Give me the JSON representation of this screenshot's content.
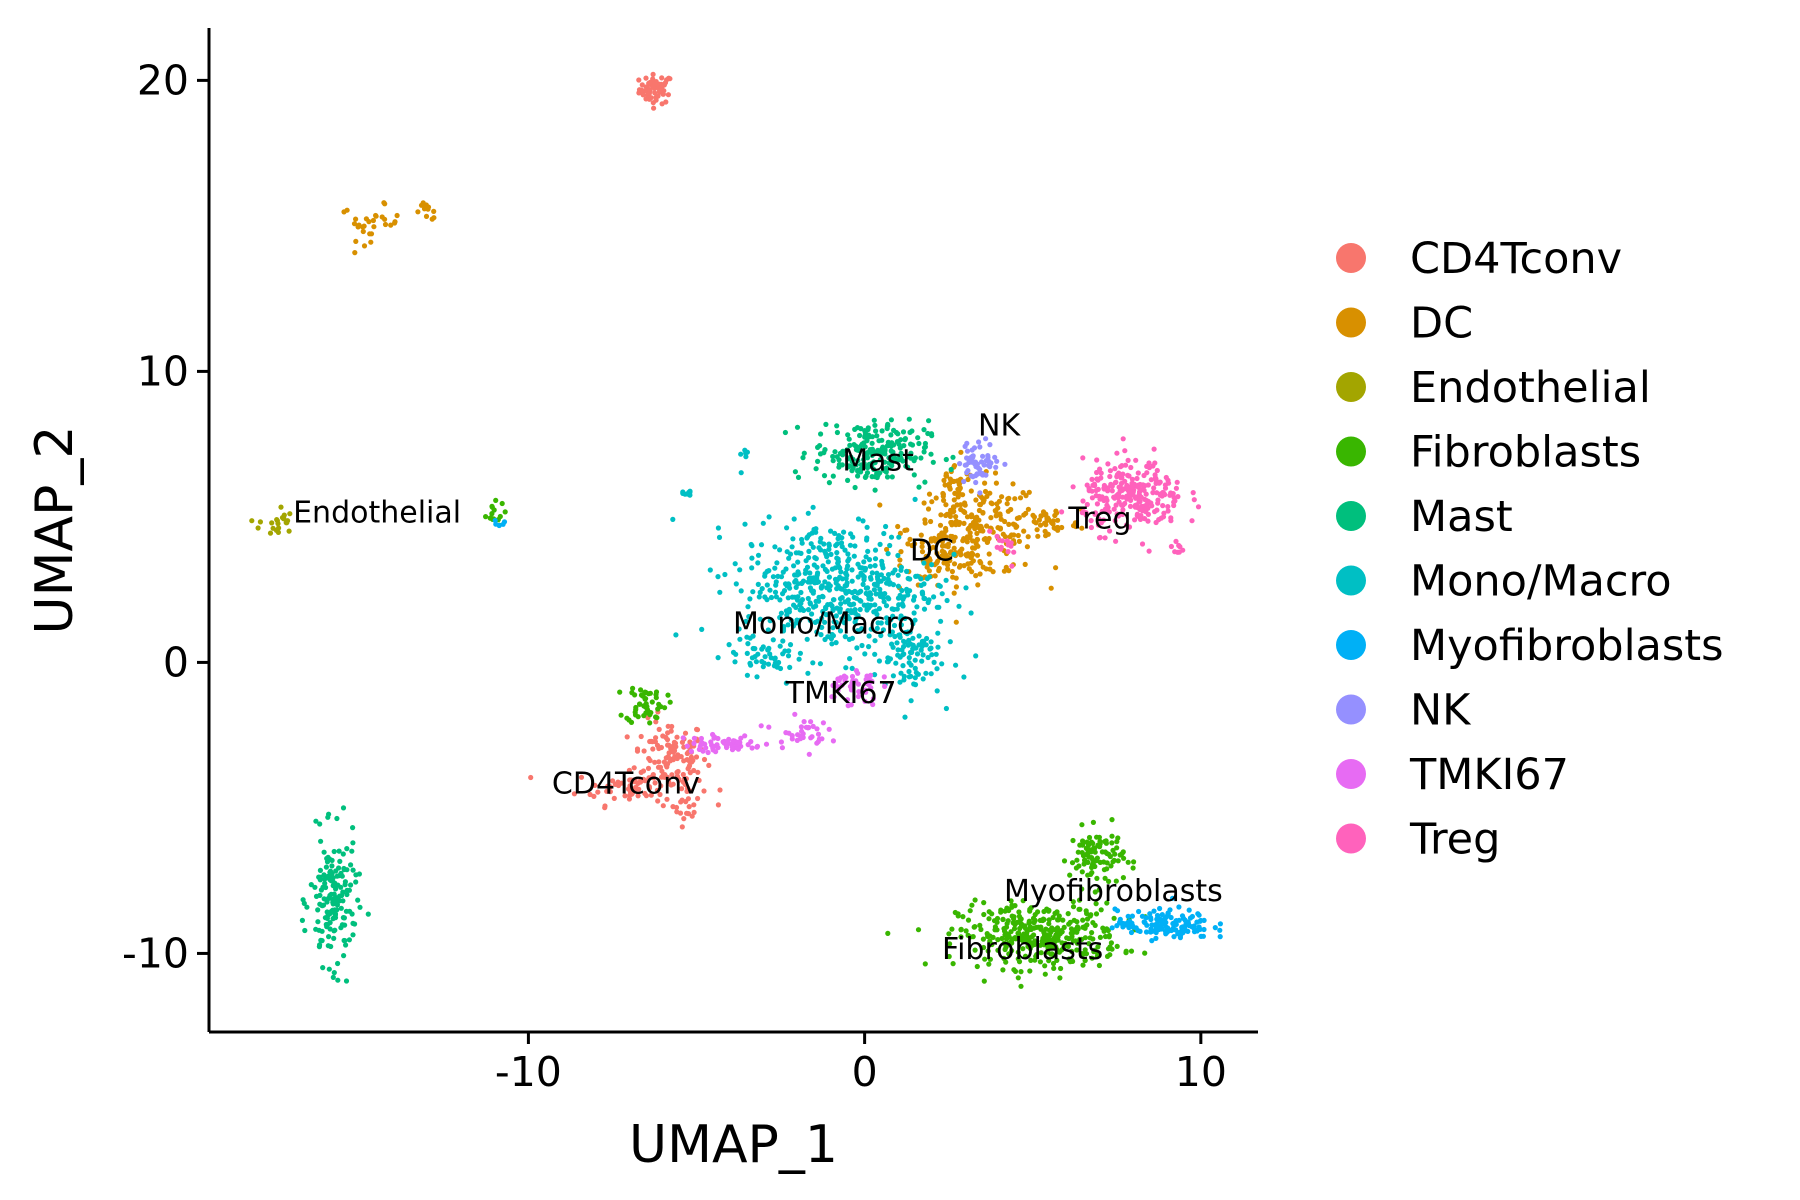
{
  "chart_data": {
    "type": "scatter",
    "xlabel": "UMAP_1",
    "ylabel": "UMAP_2",
    "xlim": [
      -19.5,
      11.7
    ],
    "ylim": [
      -12.7,
      21.8
    ],
    "x_ticks": [
      -10,
      0,
      10
    ],
    "y_ticks": [
      -10,
      0,
      10,
      20
    ],
    "x_tick_labels": [
      "-10",
      "0",
      "10"
    ],
    "y_tick_labels": [
      "-10",
      "0",
      "10",
      "20"
    ],
    "grid": false,
    "legend_position": "right",
    "legend": [
      {
        "name": "CD4Tconv",
        "color": "#F8766D"
      },
      {
        "name": "DC",
        "color": "#D89000"
      },
      {
        "name": "Endothelial",
        "color": "#A3A500"
      },
      {
        "name": "Fibroblasts",
        "color": "#39B600"
      },
      {
        "name": "Mast",
        "color": "#00BF7D"
      },
      {
        "name": "Mono/Macro",
        "color": "#00BFC4"
      },
      {
        "name": "Myofibroblasts",
        "color": "#00B0F6"
      },
      {
        "name": "NK",
        "color": "#9590FF"
      },
      {
        "name": "TMKI67",
        "color": "#E76BF3"
      },
      {
        "name": "Treg",
        "color": "#FF62BC"
      }
    ],
    "cluster_labels": [
      {
        "text": "Endothelial",
        "x": -14.5,
        "y": 4.8
      },
      {
        "text": "Mast",
        "x": 0.4,
        "y": 6.6
      },
      {
        "text": "NK",
        "x": 4.0,
        "y": 7.8
      },
      {
        "text": "Treg",
        "x": 7.0,
        "y": 4.6
      },
      {
        "text": "DC",
        "x": 2.0,
        "y": 3.5
      },
      {
        "text": "Mono/Macro",
        "x": -1.2,
        "y": 1.0
      },
      {
        "text": "TMKI67",
        "x": -0.7,
        "y": -1.4
      },
      {
        "text": "CD4Tconv",
        "x": -7.1,
        "y": -4.5
      },
      {
        "text": "Myofibroblasts",
        "x": 7.4,
        "y": -8.2
      },
      {
        "text": "Fibroblasts",
        "x": 4.7,
        "y": -10.2
      }
    ],
    "clusters": [
      {
        "series": "CD4Tconv",
        "cx": -6.2,
        "cy": 19.7,
        "sx": 0.25,
        "sy": 0.25,
        "n": 60
      },
      {
        "series": "CD4Tconv",
        "cx": -5.8,
        "cy": -3.2,
        "sx": 0.55,
        "sy": 0.6,
        "n": 110
      },
      {
        "series": "CD4Tconv",
        "cx": -6.8,
        "cy": -4.3,
        "sx": 0.9,
        "sy": 0.3,
        "n": 70
      },
      {
        "series": "CD4Tconv",
        "cx": -5.3,
        "cy": -4.8,
        "sx": 0.2,
        "sy": 0.4,
        "n": 20
      },
      {
        "series": "DC",
        "cx": -14.7,
        "cy": 15.1,
        "sx": 0.45,
        "sy": 0.3,
        "n": 30
      },
      {
        "series": "DC",
        "cx": -13.0,
        "cy": 15.5,
        "sx": 0.2,
        "sy": 0.15,
        "n": 12
      },
      {
        "series": "DC",
        "cx": 3.3,
        "cy": 4.6,
        "sx": 1.0,
        "sy": 0.8,
        "n": 240
      },
      {
        "series": "DC",
        "cx": 2.3,
        "cy": 3.5,
        "sx": 0.6,
        "sy": 0.5,
        "n": 70
      },
      {
        "series": "DC",
        "cx": 5.5,
        "cy": 4.8,
        "sx": 0.45,
        "sy": 0.3,
        "n": 40
      },
      {
        "series": "DC",
        "cx": 2.7,
        "cy": 6.2,
        "sx": 0.3,
        "sy": 0.3,
        "n": 25
      },
      {
        "series": "Endothelial",
        "cx": -17.5,
        "cy": 4.8,
        "sx": 0.25,
        "sy": 0.3,
        "n": 22
      },
      {
        "series": "Fibroblasts",
        "cx": -6.5,
        "cy": -1.4,
        "sx": 0.3,
        "sy": 0.35,
        "n": 50
      },
      {
        "series": "Fibroblasts",
        "cx": -11.1,
        "cy": 5.1,
        "sx": 0.2,
        "sy": 0.2,
        "n": 15
      },
      {
        "series": "Fibroblasts",
        "cx": 5.2,
        "cy": -9.4,
        "sx": 1.2,
        "sy": 0.55,
        "n": 360
      },
      {
        "series": "Fibroblasts",
        "cx": 6.9,
        "cy": -6.7,
        "sx": 0.4,
        "sy": 0.5,
        "n": 100
      },
      {
        "series": "Mast",
        "cx": -15.8,
        "cy": -8.2,
        "sx": 0.35,
        "sy": 1.1,
        "n": 170
      },
      {
        "series": "Mast",
        "cx": 0.2,
        "cy": 7.2,
        "sx": 0.85,
        "sy": 0.55,
        "n": 220
      },
      {
        "series": "Mono/Macro",
        "cx": -0.8,
        "cy": 2.6,
        "sx": 1.45,
        "sy": 1.1,
        "n": 520
      },
      {
        "series": "Mono/Macro",
        "cx": 1.3,
        "cy": 0.2,
        "sx": 0.5,
        "sy": 0.7,
        "n": 90
      },
      {
        "series": "Mono/Macro",
        "cx": -3.0,
        "cy": 0.2,
        "sx": 0.6,
        "sy": 0.3,
        "n": 40
      },
      {
        "series": "Mono/Macro",
        "cx": -5.3,
        "cy": 5.8,
        "sx": 0.15,
        "sy": 0.08,
        "n": 8
      },
      {
        "series": "Mono/Macro",
        "cx": -3.6,
        "cy": 7.1,
        "sx": 0.08,
        "sy": 0.1,
        "n": 5
      },
      {
        "series": "Myofibroblasts",
        "cx": 8.9,
        "cy": -9.0,
        "sx": 0.7,
        "sy": 0.25,
        "n": 140
      },
      {
        "series": "Myofibroblasts",
        "cx": -10.8,
        "cy": 4.8,
        "sx": 0.1,
        "sy": 0.1,
        "n": 5
      },
      {
        "series": "NK",
        "cx": 3.4,
        "cy": 6.9,
        "sx": 0.3,
        "sy": 0.35,
        "n": 60
      },
      {
        "series": "TMKI67",
        "cx": -4.2,
        "cy": -2.8,
        "sx": 0.6,
        "sy": 0.15,
        "n": 55
      },
      {
        "series": "TMKI67",
        "cx": -1.9,
        "cy": -2.4,
        "sx": 0.4,
        "sy": 0.25,
        "n": 35
      },
      {
        "series": "TMKI67",
        "cx": -0.4,
        "cy": -0.8,
        "sx": 0.4,
        "sy": 0.35,
        "n": 45
      },
      {
        "series": "Treg",
        "cx": 8.0,
        "cy": 5.7,
        "sx": 0.75,
        "sy": 0.6,
        "n": 260
      },
      {
        "series": "Treg",
        "cx": 9.3,
        "cy": 3.9,
        "sx": 0.1,
        "sy": 0.1,
        "n": 8
      },
      {
        "series": "Treg",
        "cx": 4.1,
        "cy": 3.9,
        "sx": 0.3,
        "sy": 0.3,
        "n": 15
      }
    ]
  }
}
